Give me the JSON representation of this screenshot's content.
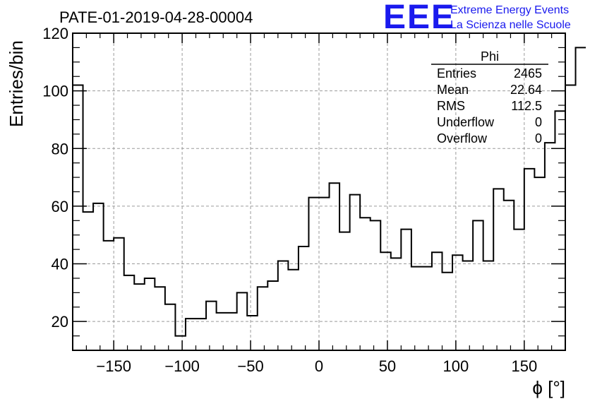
{
  "chart_data": {
    "type": "bar",
    "title": "PATE-01-2019-04-28-00004",
    "xlabel": "ϕ [°]",
    "ylabel": "Entries/bin",
    "xlim": [
      -180,
      180
    ],
    "ylim": [
      10,
      120
    ],
    "x_ticks": [
      -150,
      -100,
      -50,
      0,
      50,
      100,
      150
    ],
    "x_tick_labels": [
      "−150",
      "−100",
      "−50",
      "0",
      "50",
      "100",
      "150"
    ],
    "y_ticks": [
      20,
      40,
      60,
      80,
      100,
      120
    ],
    "y_tick_labels": [
      "20",
      "40",
      "60",
      "80",
      "100",
      "120"
    ],
    "grid": true,
    "bin_width": 7.5,
    "bin_edges_start": -180,
    "values": [
      102,
      58,
      61,
      48,
      49,
      36,
      33,
      35,
      32,
      26,
      15,
      21,
      21,
      27,
      23,
      23,
      30,
      22,
      32,
      34,
      41,
      38,
      46,
      63,
      63,
      68,
      51,
      64,
      56,
      55,
      44,
      42,
      52,
      39,
      39,
      44,
      37,
      43,
      41,
      55,
      41,
      66,
      62,
      52,
      73,
      70,
      82,
      93,
      102,
      115
    ]
  },
  "stats_box": {
    "name": "Phi",
    "rows": [
      {
        "label": "Entries",
        "value": "2465"
      },
      {
        "label": "Mean",
        "value": "22.64"
      },
      {
        "label": "RMS",
        "value": "112.5"
      },
      {
        "label": "Underflow",
        "value": "0"
      },
      {
        "label": "Overflow",
        "value": "0"
      }
    ]
  },
  "logo": {
    "mark": "EEE",
    "line1": "Extreme Energy Events",
    "line2": "La Scienza nelle Scuole",
    "color": "#1a1aee"
  }
}
